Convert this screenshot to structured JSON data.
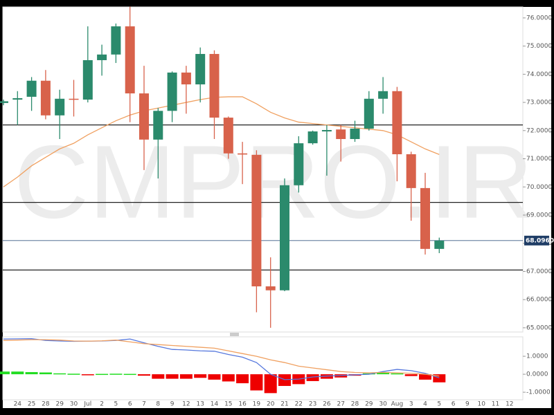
{
  "chart_data": {
    "type": "candlestick",
    "watermark": "CMPRO.IR",
    "categories": [
      null,
      "24",
      "25",
      "28",
      "29",
      "30",
      "Jul",
      "2",
      "5",
      "6",
      "7",
      "8",
      "9",
      "12",
      "13",
      "14",
      "15",
      "16",
      "19",
      "20",
      "21",
      "22",
      "23",
      "26",
      "27",
      "28",
      "29",
      "30",
      "Aug",
      "3",
      "4",
      "5",
      "6",
      "9",
      "10",
      "11",
      "12"
    ],
    "open": [
      72.98,
      73.1,
      73.2,
      73.77,
      72.54,
      73.13,
      73.1,
      74.5,
      74.7,
      75.7,
      73.32,
      71.68,
      72.7,
      74.06,
      73.64,
      74.72,
      72.46,
      71.19,
      71.14,
      66.47,
      66.33,
      70.06,
      71.55,
      71.97,
      72.04,
      71.7,
      72.07,
      73.13,
      73.4,
      71.16,
      69.96,
      67.8,
      null,
      null,
      null,
      null,
      null
    ],
    "high": [
      73.1,
      73.4,
      73.9,
      74.15,
      73.45,
      73.8,
      75.7,
      75.05,
      75.8,
      76.4,
      74.3,
      72.8,
      74.1,
      74.3,
      74.95,
      74.85,
      72.5,
      71.6,
      71.3,
      67.5,
      70.3,
      71.8,
      72.0,
      72.2,
      72.2,
      72.35,
      73.4,
      73.9,
      73.55,
      71.25,
      70.5,
      68.2,
      null,
      null,
      null,
      null,
      null
    ],
    "low": [
      72.9,
      72.2,
      72.7,
      72.4,
      71.7,
      72.5,
      73.0,
      73.95,
      74.4,
      72.3,
      70.6,
      70.3,
      72.3,
      72.6,
      73.0,
      71.7,
      71.0,
      70.1,
      65.55,
      65.0,
      66.3,
      69.8,
      71.5,
      70.4,
      70.9,
      71.6,
      72.0,
      72.6,
      70.2,
      68.8,
      67.6,
      67.65,
      null,
      null,
      null,
      null,
      null
    ],
    "close": [
      73.04,
      73.15,
      73.77,
      72.54,
      73.13,
      73.1,
      74.5,
      74.7,
      75.7,
      73.32,
      71.68,
      72.7,
      74.06,
      73.64,
      74.72,
      72.46,
      71.19,
      71.15,
      66.47,
      66.33,
      70.06,
      71.55,
      71.97,
      72.02,
      71.7,
      72.07,
      73.13,
      73.4,
      71.16,
      69.96,
      67.8,
      68.096,
      null,
      null,
      null,
      null,
      null
    ],
    "up_color": "#2b8a6c",
    "down_color": "#d8624b",
    "moving_average": {
      "color": "#f0a060",
      "values": [
        70.0,
        70.35,
        70.75,
        71.05,
        71.35,
        71.55,
        71.85,
        72.1,
        72.35,
        72.55,
        72.7,
        72.8,
        72.9,
        73.0,
        73.1,
        73.18,
        73.2,
        73.2,
        72.95,
        72.65,
        72.45,
        72.3,
        72.25,
        72.2,
        72.15,
        72.1,
        72.05,
        72.0,
        71.85,
        71.6,
        71.35,
        71.15,
        null,
        null,
        null,
        null,
        null
      ]
    },
    "levels": [
      72.2,
      69.45,
      67.05
    ],
    "last_price": {
      "value": 68.096,
      "label": "68.0960"
    },
    "ylim": [
      64.85,
      76.39
    ],
    "yticks": [
      {
        "value": 76,
        "label": "76.0000"
      },
      {
        "value": 75,
        "label": "75.0000"
      },
      {
        "value": 74,
        "label": "74.0000"
      },
      {
        "value": 73,
        "label": "73.0000"
      },
      {
        "value": 72,
        "label": "72.0000"
      },
      {
        "value": 71,
        "label": "71.0000"
      },
      {
        "value": 70,
        "label": "70.0000"
      },
      {
        "value": 69,
        "label": "69.0000"
      },
      {
        "value": 68,
        "label": "68.0000"
      },
      {
        "value": 67,
        "label": "67.0000"
      },
      {
        "value": 66,
        "label": "66.0000"
      },
      {
        "value": 65,
        "label": "65.0000"
      }
    ],
    "indicator": {
      "ylim": [
        -1.42,
        2.08
      ],
      "yticks": [
        {
          "value": 1,
          "label": "1.0000"
        },
        {
          "value": 0,
          "label": "0.0000"
        },
        {
          "value": -1,
          "label": "-1.0000"
        }
      ],
      "histogram": {
        "positive_color": "#22dd22",
        "negative_color": "#ee0000",
        "values": [
          0.15,
          0.15,
          0.12,
          0.1,
          0.05,
          0.03,
          -0.03,
          0.02,
          0.03,
          0.02,
          -0.08,
          -0.25,
          -0.25,
          -0.25,
          -0.2,
          -0.3,
          -0.4,
          -0.5,
          -0.9,
          -1.05,
          -0.65,
          -0.55,
          -0.38,
          -0.25,
          -0.18,
          -0.08,
          0.05,
          0.12,
          0.05,
          -0.1,
          -0.3,
          -0.45,
          null,
          null,
          null,
          null,
          null
        ]
      },
      "series": [
        {
          "color": "#5577dd",
          "values": [
            1.96,
            1.97,
            1.98,
            1.88,
            1.85,
            1.83,
            1.84,
            1.85,
            1.88,
            1.96,
            1.75,
            1.55,
            1.38,
            1.35,
            1.3,
            1.28,
            1.1,
            0.95,
            0.65,
            0.0,
            -0.3,
            -0.27,
            -0.15,
            -0.1,
            -0.07,
            -0.03,
            0.0,
            0.15,
            0.27,
            0.2,
            0.05,
            -0.2,
            null,
            null,
            null,
            null,
            null
          ]
        },
        {
          "color": "#f0a060",
          "values": [
            1.88,
            1.9,
            1.92,
            1.92,
            1.9,
            1.85,
            1.84,
            1.86,
            1.9,
            1.8,
            1.7,
            1.65,
            1.6,
            1.55,
            1.5,
            1.45,
            1.3,
            1.15,
            1.0,
            0.8,
            0.65,
            0.45,
            0.35,
            0.25,
            0.15,
            0.1,
            0.08,
            0.1,
            0.08,
            0.05,
            0.0,
            -0.1,
            null,
            null,
            null,
            null,
            null
          ]
        }
      ]
    }
  }
}
